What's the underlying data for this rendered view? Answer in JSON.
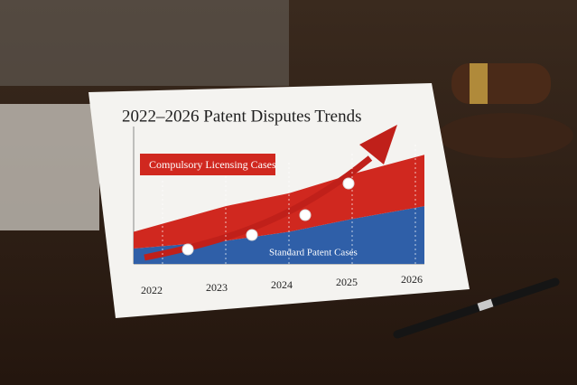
{
  "chart_data": {
    "type": "area",
    "title": "2022–2026 Patent Disputes Trends",
    "categories": [
      "2022",
      "2023",
      "2024",
      "2025",
      "2026"
    ],
    "series": [
      {
        "name": "Standard Patent Cases",
        "color": "#2f5fa8",
        "values": [
          12,
          18,
          25,
          35,
          45
        ]
      },
      {
        "name": "Compulsory Licensing Cases",
        "color": "#d0281f",
        "values": [
          13,
          27,
          30,
          35,
          40
        ]
      }
    ],
    "ylim": [
      0,
      100
    ],
    "stacked": true
  }
}
